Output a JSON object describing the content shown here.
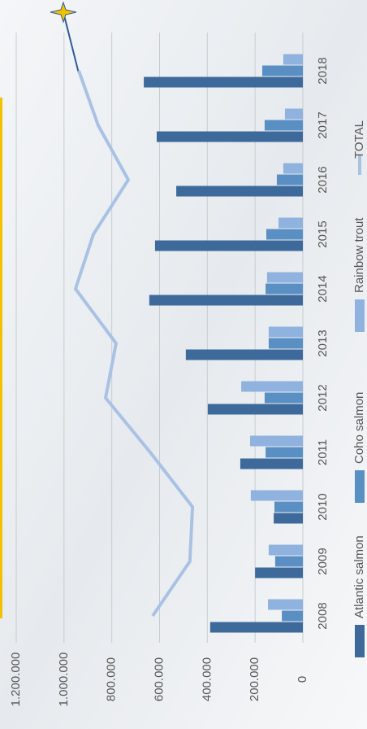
{
  "chart_data": {
    "type": "bar",
    "categories": [
      "2008",
      "2009",
      "2010",
      "2011",
      "2012",
      "2013",
      "2014",
      "2015",
      "2016",
      "2017",
      "2018"
    ],
    "series": [
      {
        "name": "Atlantic salmon",
        "color": "#3d6a9b",
        "values": [
          388000,
          200000,
          122000,
          262000,
          398000,
          490000,
          643000,
          619000,
          530000,
          612000,
          666000
        ]
      },
      {
        "name": "Coho salmon",
        "color": "#5a8fc4",
        "values": [
          88000,
          116000,
          119000,
          156000,
          160000,
          143000,
          156000,
          153000,
          109000,
          160000,
          170000
        ]
      },
      {
        "name": "Rainbow trout",
        "color": "#8fb2de",
        "values": [
          146000,
          143000,
          218000,
          221000,
          258000,
          143000,
          150000,
          102000,
          82000,
          75000,
          82000
        ]
      },
      {
        "name": "TOTAL",
        "type": "line",
        "color": "#a9c2e4",
        "values": [
          629000,
          473000,
          462000,
          639000,
          826000,
          782000,
          952000,
          877000,
          731000,
          857000,
          938000
        ]
      }
    ],
    "ylim": [
      0,
      1200000
    ],
    "yticks": [
      0,
      {
        "value": 200000,
        "label": "200.000"
      },
      {
        "value": 400000,
        "label": "400.000"
      },
      {
        "value": 600000,
        "label": "600.000"
      },
      {
        "value": 800000,
        "label": "800.000"
      },
      {
        "value": 1000000,
        "label": "1.000.000"
      },
      {
        "value": 1200000,
        "label": "1.200.000"
      }
    ],
    "grid": true
  }
}
